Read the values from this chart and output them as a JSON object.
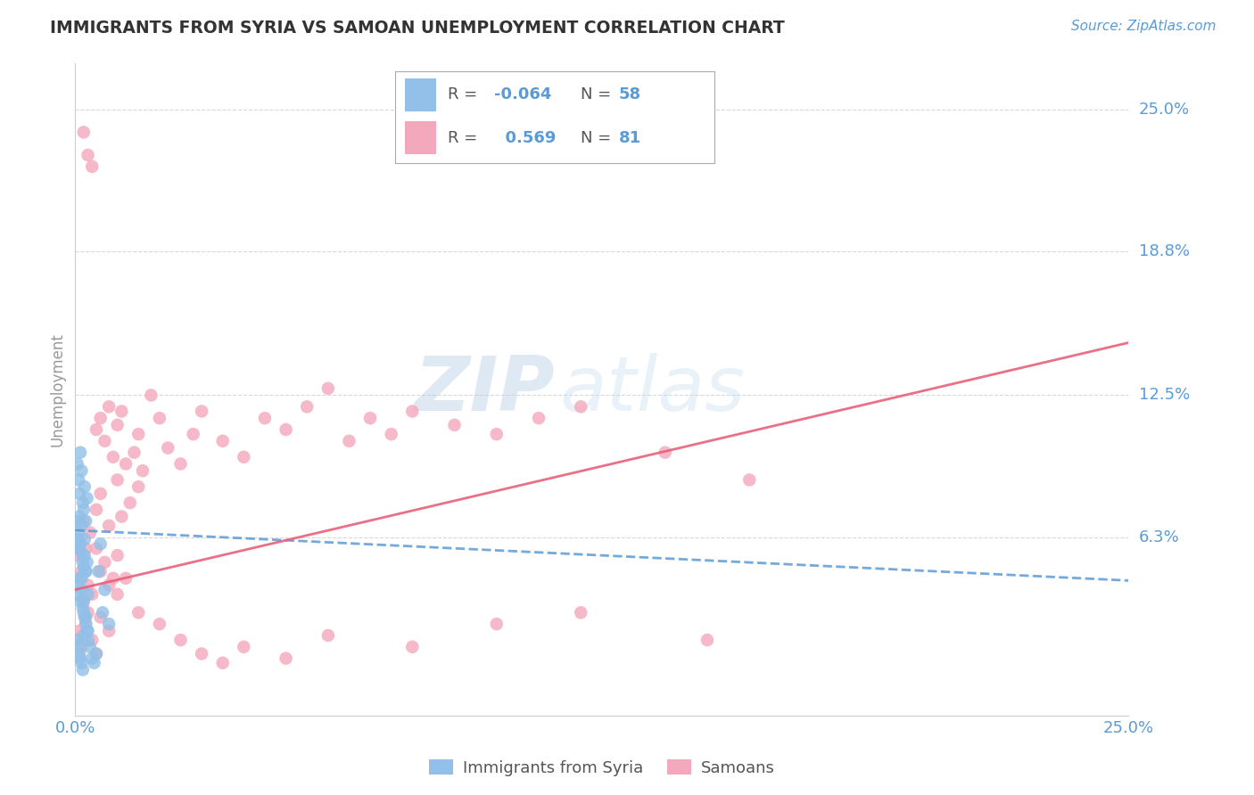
{
  "title": "IMMIGRANTS FROM SYRIA VS SAMOAN UNEMPLOYMENT CORRELATION CHART",
  "source_text": "Source: ZipAtlas.com",
  "ylabel": "Unemployment",
  "xlim": [
    0,
    0.25
  ],
  "ylim": [
    -0.015,
    0.27
  ],
  "xtick_labels": [
    "0.0%",
    "25.0%"
  ],
  "xtick_positions": [
    0.0,
    0.25
  ],
  "ytick_labels": [
    "6.3%",
    "12.5%",
    "18.8%",
    "25.0%"
  ],
  "ytick_positions": [
    0.063,
    0.125,
    0.188,
    0.25
  ],
  "grid_color": "#c8c8c8",
  "background_color": "#ffffff",
  "title_color": "#333333",
  "axis_label_color": "#5b9bd5",
  "legend_R_blue": "-0.064",
  "legend_N_blue": "58",
  "legend_R_pink": "0.569",
  "legend_N_pink": "81",
  "blue_color": "#92c0e8",
  "pink_color": "#f4a8bc",
  "blue_line_color": "#5b9bd5",
  "pink_line_color": "#e8607a",
  "watermark_zip": "ZIP",
  "watermark_atlas": "atlas",
  "blue_line_y_start": 0.066,
  "blue_line_y_end": 0.044,
  "pink_line_y_start": 0.04,
  "pink_line_y_end": 0.148,
  "blue_scatter_x": [
    0.0005,
    0.0008,
    0.001,
    0.0012,
    0.0015,
    0.0018,
    0.002,
    0.0022,
    0.0025,
    0.0028,
    0.0005,
    0.0008,
    0.001,
    0.0012,
    0.0015,
    0.0018,
    0.002,
    0.0022,
    0.0025,
    0.0028,
    0.0005,
    0.0008,
    0.001,
    0.0012,
    0.0015,
    0.0018,
    0.002,
    0.0022,
    0.0025,
    0.003,
    0.0005,
    0.0008,
    0.001,
    0.0012,
    0.0015,
    0.0018,
    0.002,
    0.0022,
    0.0025,
    0.003,
    0.0005,
    0.0008,
    0.001,
    0.0015,
    0.0018,
    0.002,
    0.0025,
    0.0028,
    0.003,
    0.0035,
    0.004,
    0.0045,
    0.005,
    0.0055,
    0.006,
    0.0065,
    0.007,
    0.008
  ],
  "blue_scatter_y": [
    0.095,
    0.088,
    0.082,
    0.1,
    0.092,
    0.078,
    0.075,
    0.085,
    0.07,
    0.08,
    0.058,
    0.065,
    0.072,
    0.06,
    0.068,
    0.055,
    0.05,
    0.062,
    0.048,
    0.052,
    0.042,
    0.038,
    0.045,
    0.035,
    0.04,
    0.032,
    0.03,
    0.028,
    0.025,
    0.022,
    0.018,
    0.015,
    0.012,
    0.01,
    0.008,
    0.005,
    0.02,
    0.055,
    0.048,
    0.038,
    0.062,
    0.07,
    0.058,
    0.045,
    0.052,
    0.035,
    0.028,
    0.022,
    0.018,
    0.015,
    0.01,
    0.008,
    0.012,
    0.048,
    0.06,
    0.03,
    0.04,
    0.025
  ],
  "pink_scatter_x": [
    0.0005,
    0.001,
    0.0015,
    0.002,
    0.0025,
    0.003,
    0.0035,
    0.004,
    0.005,
    0.006,
    0.007,
    0.008,
    0.009,
    0.01,
    0.011,
    0.012,
    0.013,
    0.014,
    0.015,
    0.016,
    0.005,
    0.006,
    0.007,
    0.008,
    0.009,
    0.01,
    0.011,
    0.015,
    0.018,
    0.02,
    0.022,
    0.025,
    0.028,
    0.03,
    0.035,
    0.04,
    0.045,
    0.05,
    0.055,
    0.06,
    0.065,
    0.07,
    0.075,
    0.08,
    0.09,
    0.1,
    0.11,
    0.12,
    0.14,
    0.16,
    0.0005,
    0.001,
    0.0015,
    0.002,
    0.0025,
    0.003,
    0.004,
    0.005,
    0.006,
    0.008,
    0.01,
    0.012,
    0.015,
    0.02,
    0.025,
    0.03,
    0.035,
    0.04,
    0.05,
    0.06,
    0.08,
    0.1,
    0.12,
    0.15,
    0.002,
    0.003,
    0.004,
    0.005,
    0.006,
    0.008,
    0.01
  ],
  "pink_scatter_y": [
    0.055,
    0.062,
    0.048,
    0.07,
    0.058,
    0.042,
    0.065,
    0.038,
    0.075,
    0.082,
    0.052,
    0.068,
    0.045,
    0.088,
    0.072,
    0.095,
    0.078,
    0.1,
    0.085,
    0.092,
    0.11,
    0.115,
    0.105,
    0.12,
    0.098,
    0.112,
    0.118,
    0.108,
    0.125,
    0.115,
    0.102,
    0.095,
    0.108,
    0.118,
    0.105,
    0.098,
    0.115,
    0.11,
    0.12,
    0.128,
    0.105,
    0.115,
    0.108,
    0.118,
    0.112,
    0.108,
    0.115,
    0.12,
    0.1,
    0.088,
    0.018,
    0.022,
    0.015,
    0.035,
    0.025,
    0.03,
    0.018,
    0.012,
    0.028,
    0.022,
    0.038,
    0.045,
    0.03,
    0.025,
    0.018,
    0.012,
    0.008,
    0.015,
    0.01,
    0.02,
    0.015,
    0.025,
    0.03,
    0.018,
    0.24,
    0.23,
    0.225,
    0.058,
    0.048,
    0.042,
    0.055
  ]
}
